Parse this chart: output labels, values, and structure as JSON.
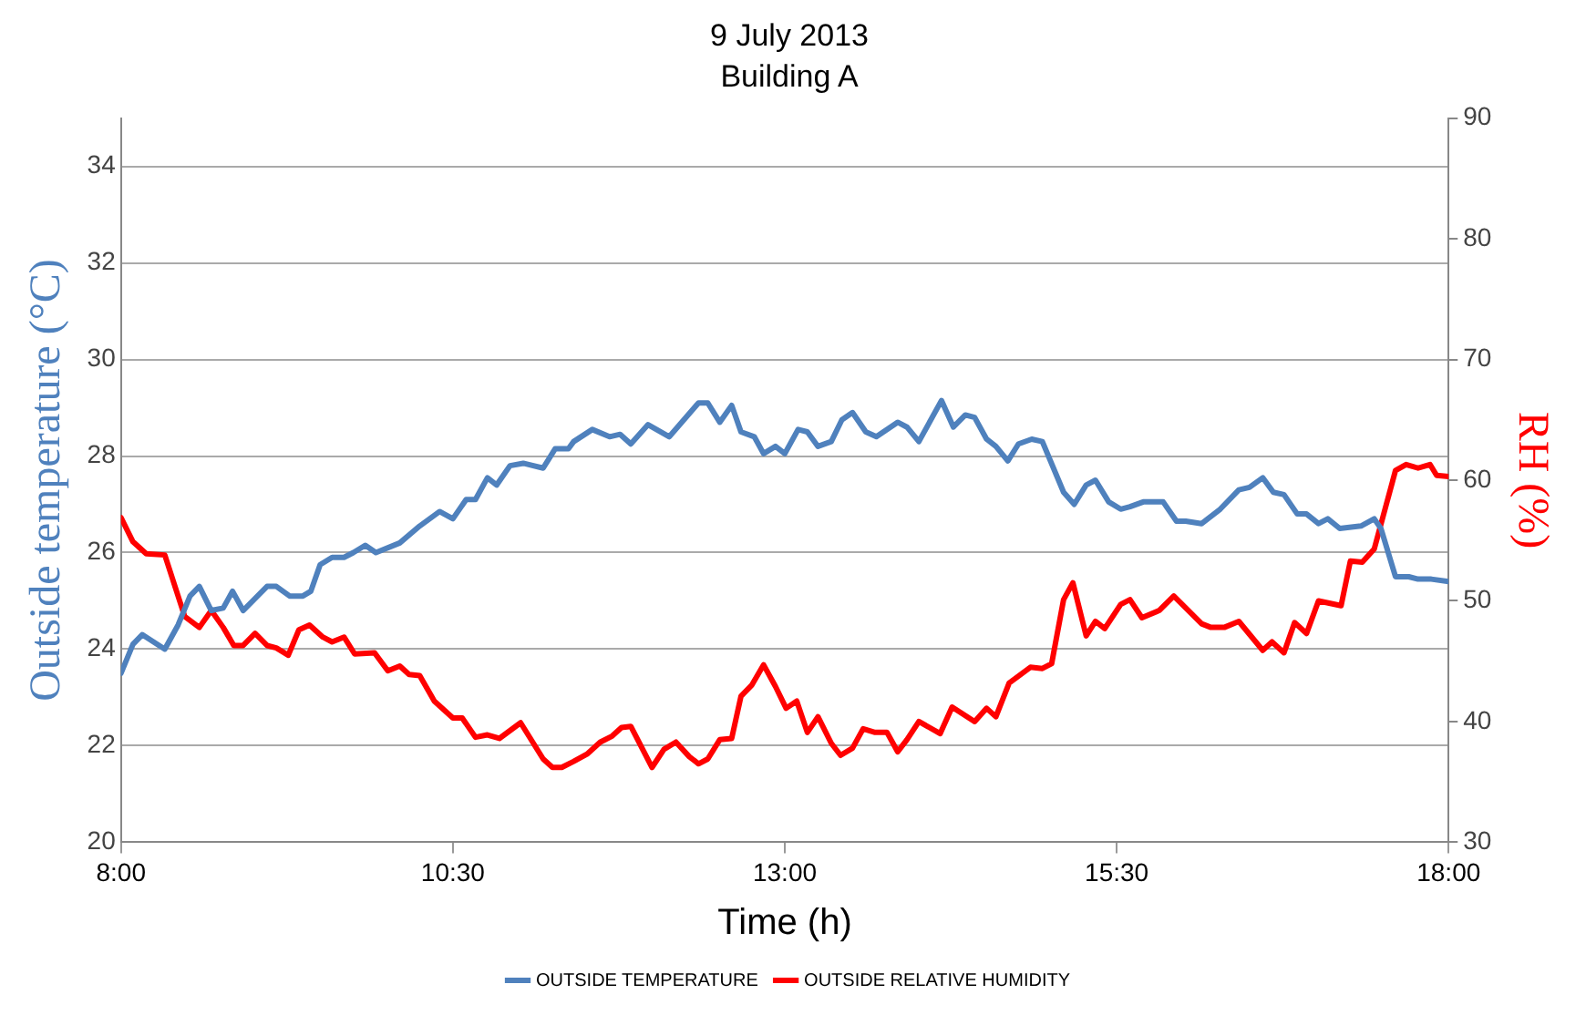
{
  "chart_data": {
    "type": "line",
    "title": "9 July 2013",
    "subtitle": "Building A",
    "xlabel": "Time (h)",
    "ylabel": "Outside temperature (°C)",
    "y2label": "RH (%)",
    "xlim": [
      8,
      18
    ],
    "xticks": [
      {
        "value": 8,
        "label": "8:00"
      },
      {
        "value": 10.5,
        "label": "10:30"
      },
      {
        "value": 13,
        "label": "13:00"
      },
      {
        "value": 15.5,
        "label": "15:30"
      },
      {
        "value": 18,
        "label": "18:00"
      }
    ],
    "ylim": [
      20,
      35
    ],
    "yticks": [
      20,
      22,
      24,
      26,
      28,
      30,
      32,
      34
    ],
    "y2lim": [
      30,
      90
    ],
    "y2ticks": [
      30,
      40,
      50,
      60,
      70,
      80,
      90
    ],
    "grid": "y",
    "legend": "bottom",
    "marker": "none",
    "line_style": "solid",
    "series": [
      {
        "name": "OUTSIDE TEMPERATURE",
        "color": "#4f81bd",
        "x": [
          8.0,
          8.09,
          8.16,
          8.33,
          8.43,
          8.52,
          8.59,
          8.68,
          8.77,
          8.84,
          8.92,
          9.1,
          9.17,
          9.27,
          9.37,
          9.43,
          9.5,
          9.59,
          9.68,
          9.75,
          9.84,
          9.92,
          10.1,
          10.25,
          10.4,
          10.5,
          10.6,
          10.67,
          10.76,
          10.83,
          10.93,
          11.03,
          11.18,
          11.27,
          11.37,
          11.41,
          11.55,
          11.68,
          11.76,
          11.77,
          11.84,
          11.97,
          12.13,
          12.35,
          12.42,
          12.51,
          12.6,
          12.67,
          12.77,
          12.84,
          12.93,
          13.0,
          13.1,
          13.17,
          13.25,
          13.35,
          13.43,
          13.51,
          13.61,
          13.69,
          13.85,
          13.92,
          14.01,
          14.18,
          14.27,
          14.36,
          14.43,
          14.52,
          14.59,
          14.68,
          14.76,
          14.86,
          14.94,
          15.1,
          15.18,
          15.27,
          15.34,
          15.44,
          15.53,
          15.6,
          15.7,
          15.85,
          15.95,
          16.02,
          16.14,
          16.28,
          16.42,
          16.5,
          16.6,
          16.68,
          16.76,
          16.86,
          16.93,
          17.02,
          17.09,
          17.18,
          17.34,
          17.44,
          17.49,
          17.6,
          17.7,
          17.77,
          17.87,
          18.0
        ],
        "values": [
          23.5,
          24.1,
          24.3,
          24.0,
          24.5,
          25.1,
          25.3,
          24.8,
          24.85,
          25.2,
          24.8,
          25.3,
          25.3,
          25.1,
          25.1,
          25.2,
          25.75,
          25.9,
          25.9,
          26.0,
          26.15,
          26.0,
          26.2,
          26.55,
          26.85,
          26.7,
          27.1,
          27.1,
          27.55,
          27.4,
          27.8,
          27.85,
          27.75,
          28.15,
          28.15,
          28.3,
          28.55,
          28.4,
          28.45,
          28.45,
          28.25,
          28.65,
          28.4,
          29.1,
          29.1,
          28.7,
          29.05,
          28.5,
          28.4,
          28.05,
          28.2,
          28.05,
          28.55,
          28.5,
          28.2,
          28.3,
          28.75,
          28.9,
          28.5,
          28.4,
          28.7,
          28.6,
          28.3,
          29.15,
          28.6,
          28.85,
          28.8,
          28.35,
          28.2,
          27.9,
          28.25,
          28.35,
          28.3,
          27.25,
          27.0,
          27.4,
          27.5,
          27.05,
          26.9,
          26.95,
          27.05,
          27.05,
          26.65,
          26.65,
          26.6,
          26.9,
          27.3,
          27.35,
          27.55,
          27.25,
          27.2,
          26.8,
          26.8,
          26.6,
          26.7,
          26.5,
          26.55,
          26.7,
          26.5,
          25.5,
          25.5,
          25.45,
          25.45,
          25.4
        ]
      },
      {
        "name": "OUTSIDE RELATIVE HUMIDITY",
        "color": "#ff0000",
        "axis": "y2",
        "x": [
          8.0,
          8.09,
          8.19,
          8.33,
          8.48,
          8.59,
          8.68,
          8.77,
          8.85,
          8.92,
          9.01,
          9.1,
          9.17,
          9.26,
          9.34,
          9.42,
          9.52,
          9.59,
          9.68,
          9.76,
          9.91,
          10.01,
          10.1,
          10.17,
          10.25,
          10.36,
          10.5,
          10.57,
          10.67,
          10.76,
          10.85,
          11.01,
          11.18,
          11.25,
          11.32,
          11.41,
          11.51,
          11.61,
          11.7,
          11.77,
          11.84,
          12.0,
          12.09,
          12.18,
          12.28,
          12.35,
          12.42,
          12.51,
          12.6,
          12.67,
          12.75,
          12.84,
          12.93,
          13.01,
          13.09,
          13.17,
          13.25,
          13.35,
          13.42,
          13.51,
          13.59,
          13.68,
          13.77,
          13.85,
          13.92,
          14.01,
          14.17,
          14.26,
          14.43,
          14.52,
          14.59,
          14.69,
          14.85,
          14.94,
          15.01,
          15.1,
          15.17,
          15.27,
          15.34,
          15.41,
          15.53,
          15.6,
          15.69,
          15.82,
          15.93,
          16.14,
          16.21,
          16.31,
          16.42,
          16.6,
          16.67,
          16.76,
          16.84,
          16.93,
          17.02,
          17.19,
          17.26,
          17.35,
          17.44,
          17.6,
          17.68,
          17.77,
          17.86,
          17.91,
          18.0
        ],
        "values": [
          56.9,
          54.9,
          53.9,
          53.8,
          48.7,
          47.8,
          49.2,
          47.8,
          46.3,
          46.3,
          47.3,
          46.3,
          46.1,
          45.5,
          47.6,
          48.0,
          47.0,
          46.6,
          47.0,
          45.6,
          45.7,
          44.2,
          44.6,
          43.9,
          43.8,
          41.7,
          40.3,
          40.3,
          38.7,
          38.9,
          38.6,
          39.9,
          36.9,
          36.2,
          36.2,
          36.7,
          37.3,
          38.3,
          38.8,
          39.5,
          39.6,
          36.2,
          37.7,
          38.3,
          37.1,
          36.5,
          36.9,
          38.5,
          38.6,
          42.1,
          43.0,
          44.7,
          42.9,
          41.1,
          41.7,
          39.1,
          40.4,
          38.2,
          37.2,
          37.8,
          39.4,
          39.1,
          39.1,
          37.5,
          38.5,
          40.0,
          39.0,
          41.2,
          40.0,
          41.1,
          40.4,
          43.2,
          44.5,
          44.4,
          44.8,
          50.1,
          51.5,
          47.1,
          48.3,
          47.7,
          49.7,
          50.1,
          48.6,
          49.2,
          50.4,
          48.1,
          47.8,
          47.8,
          48.3,
          45.9,
          46.6,
          45.7,
          48.2,
          47.3,
          50.0,
          49.6,
          53.3,
          53.2,
          54.3,
          60.8,
          61.3,
          61.0,
          61.3,
          60.4,
          60.3
        ]
      }
    ]
  }
}
